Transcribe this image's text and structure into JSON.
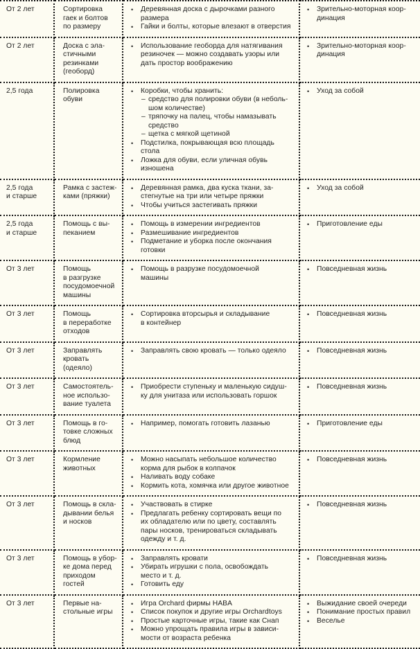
{
  "glyphs": {
    "bullet": "•",
    "dash": "–"
  },
  "colors": {
    "background": "#fdfcf2",
    "text": "#1e1e1e",
    "border": "#151515"
  },
  "table": {
    "rows": [
      {
        "age": "От 2 лет",
        "activity": "Сортировка\nгаек и болтов\nпо размеру",
        "details": [
          {
            "text": "Деревянная доска с дырочками разного\nразмера"
          },
          {
            "text": "Гайки и болты, которые влезают в отверстия"
          }
        ],
        "categories": [
          "Зрительно-моторная коор-\nдинация"
        ]
      },
      {
        "age": "От 2 лет",
        "activity": "Доска с эла-\nстичными\nрезинками\n(геоборд)",
        "details": [
          {
            "text": "Использование геоборда для натягивания\nрезиночек — можно создавать узоры или\nдать простор воображению"
          }
        ],
        "categories": [
          "Зрительно-моторная коор-\nдинация"
        ]
      },
      {
        "age": "2,5 года",
        "activity": "Полировка\nобуви",
        "details": [
          {
            "text": "Коробки, чтобы хранить:",
            "sub": [
              "средство для полировки обуви (в неболь-\nшом количестве)",
              "тряпочку на палец, чтобы намазывать\nсредство",
              "щетка с мягкой щетиной"
            ]
          },
          {
            "text": "Подстилка, покрывающая всю площадь\nстола"
          },
          {
            "text": "Ложка для обуви, если уличная обувь\nизношена"
          }
        ],
        "categories": [
          "Уход за собой"
        ]
      },
      {
        "age": "2,5 года\nи старше",
        "activity": "Рамка с застеж-\nками (пряжки)",
        "details": [
          {
            "text": "Деревянная рамка, два куска ткани, за-\nстегнутые на три или четыре пряжки"
          },
          {
            "text": "Чтобы учиться застегивать пряжки"
          }
        ],
        "categories": [
          "Уход за собой"
        ]
      },
      {
        "age": "2,5 года\nи старше",
        "activity": "Помощь с вы-\nпеканием",
        "details": [
          {
            "text": "Помощь в измерении ингредиентов"
          },
          {
            "text": "Размешивание ингредиентов"
          },
          {
            "text": "Подметание и уборка после окончания\nготовки"
          }
        ],
        "categories": [
          "Приготовление еды"
        ]
      },
      {
        "age": "От 3 лет",
        "activity": "Помощь\nв разгрузке\nпосудомоечной\nмашины",
        "details": [
          {
            "text": "Помощь в разрузке посудомоечной\nмашины"
          }
        ],
        "categories": [
          "Повседневная жизнь"
        ]
      },
      {
        "age": "От 3 лет",
        "activity": "Помощь\nв переработке\nотходов",
        "details": [
          {
            "text": "Сортировка вторсырья и складывание\nв контейнер"
          }
        ],
        "categories": [
          "Повседневная жизнь"
        ]
      },
      {
        "age": "От 3 лет",
        "activity": "Заправлять\nкровать\n(одеяло)",
        "details": [
          {
            "text": "Заправлять свою кровать — только одеяло"
          }
        ],
        "categories": [
          "Повседневная жизнь"
        ]
      },
      {
        "age": "От 3 лет",
        "activity": "Самостоятель-\nное использо-\nвание туалета",
        "details": [
          {
            "text": "Приобрести ступеньку и маленькую сидуш-\nку для унитаза или использовать горшок"
          }
        ],
        "categories": [
          "Повседневная жизнь"
        ]
      },
      {
        "age": "От 3 лет",
        "activity": "Помощь в го-\nтовке сложных\nблюд",
        "details": [
          {
            "text": "Например, помогать готовить лазанью"
          }
        ],
        "categories": [
          "Приготовление еды"
        ]
      },
      {
        "age": "От 3 лет",
        "activity": "Кормление\nживотных",
        "details": [
          {
            "text": "Можно насыпать небольшое количество\nкорма для рыбок в колпачок"
          },
          {
            "text": "Наливать воду собаке"
          },
          {
            "text": "Кормить кота, хомячка или другое животное"
          }
        ],
        "categories": [
          "Повседневная жизнь"
        ]
      },
      {
        "age": "От 3 лет",
        "activity": "Помощь в скла-\nдывании белья\nи носков",
        "details": [
          {
            "text": "Участвовать в стирке"
          },
          {
            "text": "Предлагать ребенку сортировать вещи по\nих обладателю или по цвету, составлять\nпары носков, тренироваться складывать\nодежду и т. д."
          }
        ],
        "categories": [
          "Повседневная жизнь"
        ]
      },
      {
        "age": "От 3 лет",
        "activity": "Помощь в убор-\nке дома перед\nприходом\nгостей",
        "details": [
          {
            "text": "Заправлять кровати"
          },
          {
            "text": "Убирать игрушки с пола, освобождать\nместо и т. д."
          },
          {
            "text": "Готовить еду"
          }
        ],
        "categories": [
          "Повседневная жизнь"
        ]
      },
      {
        "age": "От 3 лет",
        "activity": "Первые на-\nстольные игры",
        "details": [
          {
            "text": "Игра Orchard фирмы HABA"
          },
          {
            "text": "Список покупок и другие игры Orchardtoys"
          },
          {
            "text": "Простые карточные игры, такие как Снап"
          },
          {
            "text": "Можно упрощать правила игры в зависи-\nмости от возраста ребенка"
          }
        ],
        "categories": [
          "Выжидание своей очереди",
          "Понимание простых правил",
          "Веселье"
        ]
      }
    ]
  }
}
